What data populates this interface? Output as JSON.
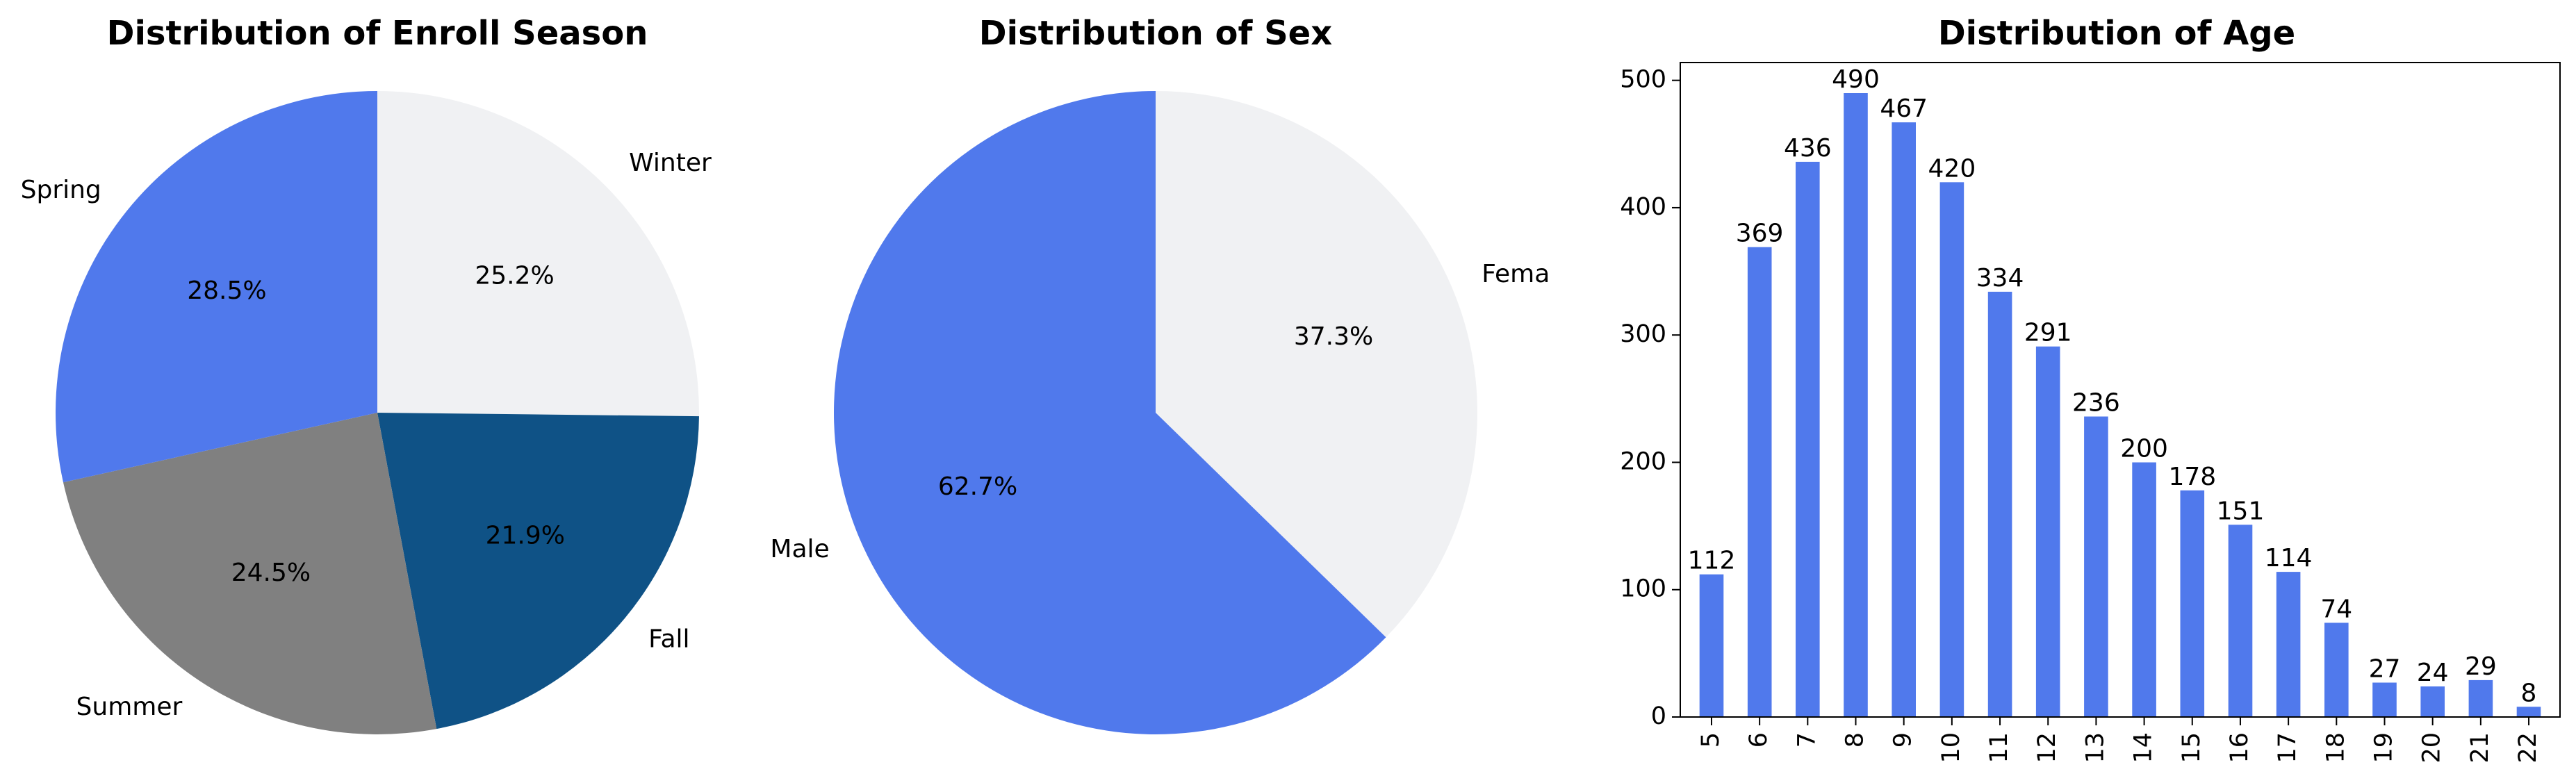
{
  "chart_data": [
    {
      "type": "pie",
      "title": "Distribution of Enroll Season",
      "categories": [
        "Winter",
        "Fall",
        "Summer",
        "Spring"
      ],
      "values": [
        25.2,
        21.9,
        24.5,
        28.5
      ],
      "value_labels": [
        "25.2%",
        "21.9%",
        "24.5%",
        "28.5%"
      ],
      "colors": [
        "#f0f1f3",
        "#0f5286",
        "#808080",
        "#5079ec"
      ],
      "start_angle": 90,
      "direction": "clockwise"
    },
    {
      "type": "pie",
      "title": "Distribution of Sex",
      "categories": [
        "Female",
        "Male"
      ],
      "values": [
        37.3,
        62.7
      ],
      "value_labels": [
        "37.3%",
        "62.7%"
      ],
      "colors": [
        "#f0f1f3",
        "#5079ec"
      ],
      "start_angle": 90,
      "direction": "clockwise"
    },
    {
      "type": "bar",
      "title": "Distribution of Age",
      "categories": [
        "5",
        "6",
        "7",
        "8",
        "9",
        "10",
        "11",
        "12",
        "13",
        "14",
        "15",
        "16",
        "17",
        "18",
        "19",
        "20",
        "21",
        "22"
      ],
      "values": [
        112,
        369,
        436,
        490,
        467,
        420,
        334,
        291,
        236,
        200,
        178,
        151,
        114,
        74,
        27,
        24,
        29,
        8
      ],
      "value_labels": [
        "112",
        "369",
        "436",
        "490",
        "467",
        "420",
        "334",
        "291",
        "236",
        "200",
        "178",
        "151",
        "114",
        "74",
        "27",
        "24",
        "29",
        "8"
      ],
      "y_ticks": [
        "0",
        "100",
        "200",
        "300",
        "400",
        "500"
      ],
      "ylim": [
        0,
        514
      ],
      "bar_color": "#5079ec",
      "xlabel": "",
      "ylabel": "",
      "grid": false
    }
  ]
}
